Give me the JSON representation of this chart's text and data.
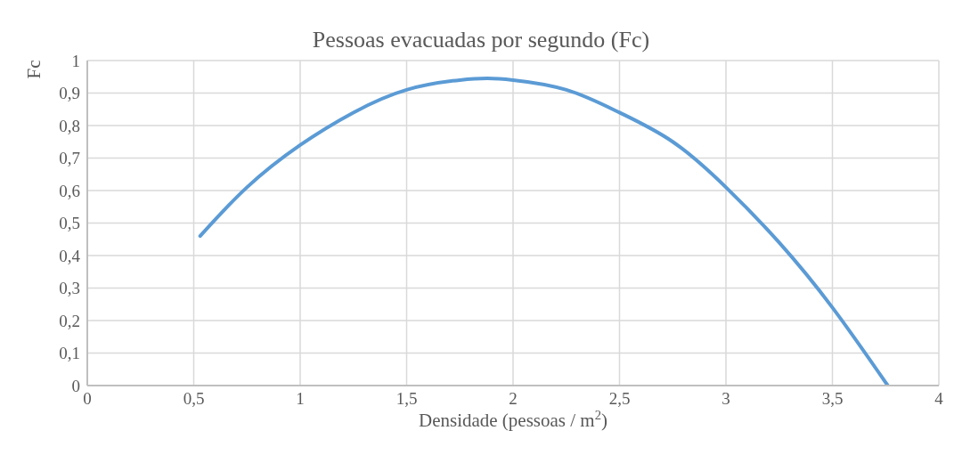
{
  "chart_data": {
    "type": "line",
    "title": "Pessoas evacuadas por segundo (Fc)",
    "xlabel": "Densidade (pessoas / m$^{2}$)",
    "ylabel": "Fc",
    "x": [
      0.53,
      0.75,
      1,
      1.25,
      1.5,
      1.75,
      1.88,
      2,
      2.25,
      2.5,
      2.75,
      3,
      3.25,
      3.5,
      3.76
    ],
    "series": [
      {
        "color": "#5b9bd5",
        "values": [
          0.46,
          0.61,
          0.74,
          0.84,
          0.91,
          0.94,
          0.945,
          0.94,
          0.91,
          0.84,
          0.75,
          0.61,
          0.44,
          0.24,
          0
        ]
      }
    ],
    "xlim": [
      0,
      4
    ],
    "xticks": [
      0,
      {
        "value": 0.5,
        "label": "0,5"
      },
      1,
      {
        "value": 1.5,
        "label": "1,5"
      },
      2,
      {
        "value": 2.5,
        "label": "2,5"
      },
      3,
      {
        "value": 3.5,
        "label": "3,5"
      },
      4
    ],
    "ylim": [
      0,
      1
    ],
    "yticks": [
      0,
      {
        "value": 0.1,
        "label": "0,1"
      },
      {
        "value": 0.2,
        "label": "0,2"
      },
      {
        "value": 0.3,
        "label": "0,3"
      },
      {
        "value": 0.4,
        "label": "0,4"
      },
      {
        "value": 0.5,
        "label": "0,5"
      },
      {
        "value": 0.6,
        "label": "0,6"
      },
      {
        "value": 0.7,
        "label": "0,7"
      },
      {
        "value": 0.8,
        "label": "0,8"
      },
      {
        "value": 0.9,
        "label": "0,9"
      },
      1
    ],
    "grid": true,
    "marker": "none",
    "line_style": "solid",
    "legend": false
  }
}
